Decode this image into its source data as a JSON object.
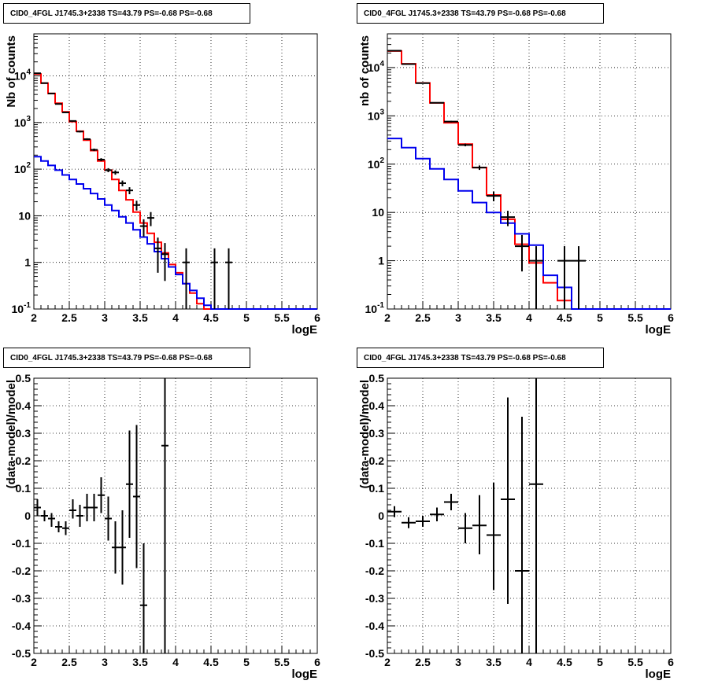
{
  "chart_data": [
    {
      "type": "histogram",
      "title": "CID0_4FGL J1745.3+2338 TS=43.79 PS=-0.68 PS=-0.68",
      "xlabel": "logE",
      "ylabel": "Nb of counts",
      "xlim": [
        2,
        6
      ],
      "ylim": [
        0.1,
        80000
      ],
      "yscale": "log",
      "grid": true,
      "xticks": [
        "2",
        "2.5",
        "3",
        "3.5",
        "4",
        "4.5",
        "5",
        "5.5",
        "6"
      ],
      "yticks": [
        {
          "v": 0.1,
          "t": "10",
          "e": "-1"
        },
        {
          "v": 1,
          "t": "1",
          "e": ""
        },
        {
          "v": 10,
          "t": "10",
          "e": ""
        },
        {
          "v": 100,
          "t": "10",
          "e": "2"
        },
        {
          "v": 1000,
          "t": "10",
          "e": "3"
        },
        {
          "v": 10000,
          "t": "10",
          "e": "4"
        }
      ],
      "bin_edges": [
        2.0,
        2.1,
        2.2,
        2.3,
        2.4,
        2.5,
        2.6,
        2.7,
        2.8,
        2.9,
        3.0,
        3.1,
        3.2,
        3.3,
        3.4,
        3.5,
        3.6,
        3.7,
        3.8,
        3.9,
        4.0,
        4.1,
        4.2,
        4.3,
        4.4,
        4.5,
        4.6,
        4.7,
        4.8,
        4.9,
        5.0,
        5.1,
        5.2,
        5.3,
        5.4,
        5.5,
        5.6,
        5.7,
        5.8,
        5.9,
        6.0
      ],
      "series": [
        {
          "kind": "total-model",
          "color": "#ff0000",
          "values": [
            11000,
            7000,
            4200,
            2600,
            1700,
            1050,
            650,
            420,
            250,
            150,
            95,
            60,
            35,
            22,
            12,
            7,
            4.2,
            2.7,
            1.6,
            0.9,
            0.6,
            0.35,
            0.22,
            0.13,
            0.1,
            0.1,
            0.1,
            0.1,
            0.1,
            0.1,
            0.1,
            0.1,
            0.1,
            0.1,
            0.1,
            0.1,
            0.1,
            0.1,
            0.1,
            0.1
          ]
        },
        {
          "kind": "source-model",
          "color": "#0000ee",
          "values": [
            185,
            150,
            120,
            95,
            75,
            60,
            48,
            38,
            30,
            23,
            17,
            13,
            9.5,
            7,
            5,
            3.5,
            2.5,
            1.7,
            1.2,
            0.8,
            0.55,
            0.35,
            0.25,
            0.17,
            0.12,
            0.1,
            0.1,
            0.1,
            0.1,
            0.1,
            0.1,
            0.1,
            0.1,
            0.1,
            0.1,
            0.1,
            0.1,
            0.1,
            0.1,
            0.1
          ]
        }
      ],
      "points": {
        "x": [
          2.05,
          2.15,
          2.25,
          2.35,
          2.45,
          2.55,
          2.65,
          2.75,
          2.85,
          2.95,
          3.05,
          3.15,
          3.25,
          3.35,
          3.45,
          3.55,
          3.65,
          3.75,
          3.85,
          4.15,
          4.55,
          4.75
        ],
        "y": [
          11400,
          7000,
          4200,
          2500,
          1650,
          1080,
          640,
          440,
          260,
          160,
          95,
          85,
          50,
          35,
          17,
          6,
          9,
          2,
          1.5,
          1,
          1,
          1
        ],
        "ylo": [
          11200,
          6900,
          4120,
          2450,
          1610,
          1045,
          615,
          420,
          244,
          148,
          86,
          76,
          43,
          29,
          13,
          3.6,
          6,
          0.6,
          0.4,
          0.1,
          0.1,
          0.1
        ],
        "yhi": [
          11600,
          7100,
          4280,
          2550,
          1690,
          1115,
          665,
          460,
          276,
          172,
          105,
          94,
          57,
          41,
          21,
          8.4,
          12,
          3.4,
          2.6,
          2,
          2,
          2
        ],
        "xerr": 0.05
      }
    },
    {
      "type": "histogram",
      "title": "CID0_4FGL J1745.3+2338 TS=43.79 PS=-0.68 PS=-0.68",
      "xlabel": "logE",
      "ylabel": "nb of counts",
      "xlim": [
        2,
        6
      ],
      "ylim": [
        0.1,
        50000
      ],
      "yscale": "log",
      "grid": true,
      "xticks": [
        "2",
        "2.5",
        "3",
        "3.5",
        "4",
        "4.5",
        "5",
        "5.5",
        "6"
      ],
      "yticks": [
        {
          "v": 0.1,
          "t": "10",
          "e": "-1"
        },
        {
          "v": 1,
          "t": "1",
          "e": ""
        },
        {
          "v": 10,
          "t": "10",
          "e": ""
        },
        {
          "v": 100,
          "t": "10",
          "e": "2"
        },
        {
          "v": 1000,
          "t": "10",
          "e": "3"
        },
        {
          "v": 10000,
          "t": "10",
          "e": "4"
        }
      ],
      "bin_edges": [
        2.0,
        2.2,
        2.4,
        2.6,
        2.8,
        3.0,
        3.2,
        3.4,
        3.6,
        3.8,
        4.0,
        4.2,
        4.4,
        4.6,
        4.8,
        5.0,
        5.2,
        5.4,
        5.6,
        5.8,
        6.0
      ],
      "series": [
        {
          "kind": "total-model",
          "color": "#ff0000",
          "values": [
            22000,
            12000,
            4800,
            1850,
            720,
            260,
            85,
            23,
            7.2,
            2.2,
            0.9,
            0.35,
            0.15,
            0.1,
            0.1,
            0.1,
            0.1,
            0.1,
            0.1,
            0.1
          ]
        },
        {
          "kind": "source-model",
          "color": "#0000ee",
          "values": [
            340,
            220,
            130,
            80,
            48,
            28,
            16,
            10,
            6,
            3.6,
            2.1,
            0.5,
            0.28,
            0.1,
            0.1,
            0.1,
            0.1,
            0.1,
            0.1,
            0.1
          ]
        }
      ],
      "points": {
        "x": [
          2.1,
          2.3,
          2.5,
          2.7,
          2.9,
          3.1,
          3.3,
          3.5,
          3.7,
          3.9,
          4.1,
          4.5,
          4.7
        ],
        "y": [
          22300,
          11800,
          4750,
          1860,
          760,
          250,
          85,
          22,
          8,
          2,
          1,
          1,
          1
        ],
        "ylo": [
          22150,
          11690,
          4680,
          1817,
          732,
          234,
          76,
          17,
          5.2,
          0.6,
          0.1,
          0.1,
          0.1
        ],
        "yhi": [
          22450,
          11910,
          4820,
          1903,
          788,
          266,
          94,
          27,
          10.8,
          3.4,
          2,
          2,
          2
        ],
        "xerr": 0.1
      }
    },
    {
      "type": "residual",
      "title": "CID0_4FGL J1745.3+2338 TS=43.79 PS=-0.68 PS=-0.68",
      "xlabel": "logE",
      "ylabel": "(data-model)/model",
      "xlim": [
        2,
        6
      ],
      "ylim": [
        -0.5,
        0.5
      ],
      "yscale": "linear",
      "grid": true,
      "xticks": [
        "2",
        "2.5",
        "3",
        "3.5",
        "4",
        "4.5",
        "5",
        "5.5",
        "6"
      ],
      "yticks": [
        {
          "v": -0.5,
          "t": "-0.5",
          "e": ""
        },
        {
          "v": -0.4,
          "t": "-0.4",
          "e": ""
        },
        {
          "v": -0.3,
          "t": "-0.3",
          "e": ""
        },
        {
          "v": -0.2,
          "t": "-0.2",
          "e": ""
        },
        {
          "v": -0.1,
          "t": "-0.1",
          "e": ""
        },
        {
          "v": 0,
          "t": "0",
          "e": ""
        },
        {
          "v": 0.1,
          "t": "0.1",
          "e": ""
        },
        {
          "v": 0.2,
          "t": "0.2",
          "e": ""
        },
        {
          "v": 0.3,
          "t": "0.3",
          "e": ""
        },
        {
          "v": 0.4,
          "t": "0.4",
          "e": ""
        },
        {
          "v": 0.5,
          "t": "0.5",
          "e": ""
        }
      ],
      "points": {
        "x": [
          2.05,
          2.15,
          2.25,
          2.35,
          2.45,
          2.55,
          2.65,
          2.75,
          2.85,
          2.95,
          3.05,
          3.15,
          3.25,
          3.35,
          3.45,
          3.55,
          3.85
        ],
        "y": [
          0.03,
          0.0,
          -0.01,
          -0.04,
          -0.045,
          0.02,
          0.0,
          0.03,
          0.03,
          0.075,
          -0.01,
          -0.115,
          -0.115,
          0.115,
          0.07,
          -0.325,
          0.255
        ],
        "ylo": [
          0.0,
          -0.02,
          -0.04,
          -0.06,
          -0.07,
          -0.01,
          -0.04,
          -0.02,
          -0.02,
          0.01,
          -0.09,
          -0.21,
          -0.25,
          -0.08,
          -0.19,
          -0.55,
          -0.55
        ],
        "yhi": [
          0.06,
          0.02,
          0.01,
          -0.02,
          -0.02,
          0.06,
          0.04,
          0.08,
          0.08,
          0.14,
          0.07,
          -0.02,
          0.02,
          0.31,
          0.33,
          -0.1,
          0.55
        ],
        "xerr": 0.05
      }
    },
    {
      "type": "residual",
      "title": "CID0_4FGL J1745.3+2338 TS=43.79 PS=-0.68 PS=-0.68",
      "xlabel": "logE",
      "ylabel": "(data-model)/model",
      "xlim": [
        2,
        6
      ],
      "ylim": [
        -0.5,
        0.5
      ],
      "yscale": "linear",
      "grid": true,
      "xticks": [
        "2",
        "2.5",
        "3",
        "3.5",
        "4",
        "4.5",
        "5",
        "5.5",
        "6"
      ],
      "yticks": [
        {
          "v": -0.5,
          "t": "-0.5",
          "e": ""
        },
        {
          "v": -0.4,
          "t": "-0.4",
          "e": ""
        },
        {
          "v": -0.3,
          "t": "-0.3",
          "e": ""
        },
        {
          "v": -0.2,
          "t": "-0.2",
          "e": ""
        },
        {
          "v": -0.1,
          "t": "-0.1",
          "e": ""
        },
        {
          "v": 0,
          "t": "0",
          "e": ""
        },
        {
          "v": 0.1,
          "t": "0.1",
          "e": ""
        },
        {
          "v": 0.2,
          "t": "0.2",
          "e": ""
        },
        {
          "v": 0.3,
          "t": "0.3",
          "e": ""
        },
        {
          "v": 0.4,
          "t": "0.4",
          "e": ""
        },
        {
          "v": 0.5,
          "t": "0.5",
          "e": ""
        }
      ],
      "points": {
        "x": [
          2.1,
          2.3,
          2.5,
          2.7,
          2.9,
          3.1,
          3.3,
          3.5,
          3.7,
          3.9,
          4.1
        ],
        "y": [
          0.015,
          -0.025,
          -0.02,
          0.005,
          0.05,
          -0.045,
          -0.035,
          -0.07,
          0.06,
          -0.2,
          0.115
        ],
        "ylo": [
          -0.005,
          -0.045,
          -0.04,
          -0.02,
          0.02,
          -0.1,
          -0.14,
          -0.27,
          -0.32,
          -0.55,
          -0.55
        ],
        "yhi": [
          0.035,
          -0.005,
          0.0,
          0.03,
          0.08,
          0.01,
          0.075,
          0.12,
          0.43,
          0.36,
          0.55
        ],
        "xerr": 0.1
      }
    }
  ]
}
